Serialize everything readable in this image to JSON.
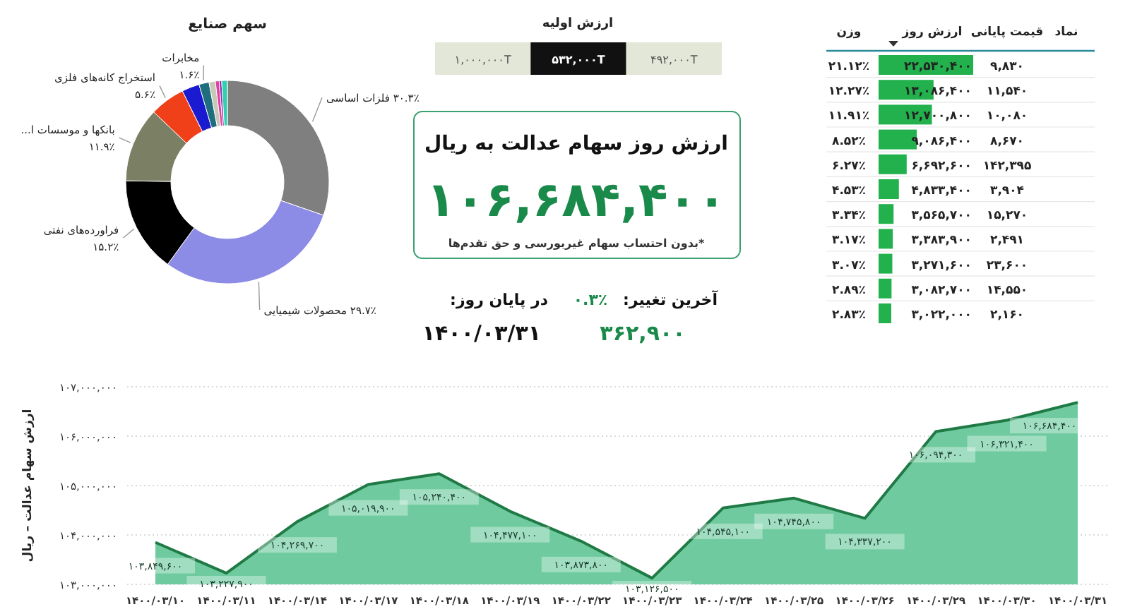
{
  "chart_data": [
    {
      "type": "donut",
      "title": "سهم صنایع",
      "categories": [
        "فلزات اساسی",
        "محصولات شیمیایی",
        "فراورده‌های نفتی",
        "بانکها و موسسات ا...",
        "استخراج کانه‌های فلزی",
        null,
        "مخابرات",
        null,
        null,
        null,
        null
      ],
      "values": [
        30.3,
        29.7,
        15.2,
        11.9,
        5.6,
        2.8,
        1.6,
        1.0,
        0.6,
        0.4,
        0.9
      ],
      "value_labels": [
        "۳۰.۳٪",
        "۲۹.۷٪",
        "۱۵.۲٪",
        "۱۱.۹٪",
        "۵.۶٪",
        null,
        "۱.۶٪",
        null,
        null,
        null,
        null
      ],
      "colors": [
        "#7f7f7f",
        "#8c8ce6",
        "#000000",
        "#7b7f63",
        "#f0401a",
        "#1a1ad0",
        "#1f6e7e",
        "#c8c8b8",
        "#e040a0",
        "#9030b0",
        "#30d0b0"
      ]
    },
    {
      "type": "other",
      "title": "ارزش اولیه",
      "annotations": [
        "۱,۰۰۰,۰۰۰T",
        "۵۳۲,۰۰۰T",
        "۴۹۲,۰۰۰T"
      ]
    },
    {
      "type": "other",
      "title": "ارزش روز سهام عدالت به ریال",
      "annotations": [
        "۱۰۶,۶۸۴,۴۰۰",
        "*بدون احتساب سهام غیربورسی و حق تقدم‌ها",
        "آخرین تغییر:",
        "۰.۳٪",
        "۳۶۲,۹۰۰",
        "در پایان روز:",
        "۱۴۰۰/۰۳/۳۱"
      ]
    },
    {
      "type": "bar",
      "orientation": "horizontal",
      "categories": [
        null,
        null,
        null,
        null,
        null,
        null,
        null,
        null,
        null,
        null,
        null
      ],
      "values": [
        22530400,
        13086400,
        12700800,
        9086400,
        6692600,
        4833400,
        3565700,
        3383900,
        3271600,
        3082700,
        3022000
      ],
      "value_labels": [
        "۲۲,۵۳۰,۴۰۰",
        "۱۳,۰۸۶,۴۰۰",
        "۱۲,۷۰۰,۸۰۰",
        "۹,۰۸۶,۴۰۰",
        "۶,۶۹۲,۶۰۰",
        "۴,۸۳۳,۴۰۰",
        "۳,۵۶۵,۷۰۰",
        "۳,۳۸۳,۹۰۰",
        "۳,۲۷۱,۶۰۰",
        "۳,۰۸۲,۷۰۰",
        "۳,۰۲۲,۰۰۰"
      ],
      "color": "#22b14c",
      "annotations": [
        "نماد",
        "قیمت پایانی",
        "ارزش روز",
        "وزن",
        "۹,۸۳۰",
        "۱۱,۵۴۰",
        "۱۰,۰۸۰",
        "۸,۶۷۰",
        "۱۴۲,۳۹۵",
        "۳,۹۰۴",
        "۱۵,۲۷۰",
        "۲,۴۹۱",
        "۲۳,۶۰۰",
        "۱۴,۵۵۰",
        "۲,۱۶۰",
        "۲۱.۱۲٪",
        "۱۲.۲۷٪",
        "۱۱.۹۱٪",
        "۸.۵۲٪",
        "۶.۲۷٪",
        "۴.۵۳٪",
        "۳.۳۴٪",
        "۳.۱۷٪",
        "۳.۰۷٪",
        "۲.۸۹٪",
        "۲.۸۳٪"
      ]
    },
    {
      "type": "area",
      "ylabel": "ارزش سهام عدالت – ریال",
      "categories": [
        "۱۴۰۰/۰۳/۱۰",
        "۱۴۰۰/۰۳/۱۱",
        "۱۴۰۰/۰۳/۱۴",
        "۱۴۰۰/۰۳/۱۷",
        "۱۴۰۰/۰۳/۱۸",
        "۱۴۰۰/۰۳/۱۹",
        "۱۴۰۰/۰۳/۲۲",
        "۱۴۰۰/۰۳/۲۳",
        "۱۴۰۰/۰۳/۲۴",
        "۱۴۰۰/۰۳/۲۵",
        "۱۴۰۰/۰۳/۲۶",
        "۱۴۰۰/۰۳/۲۹",
        "۱۴۰۰/۰۳/۳۰",
        "۱۴۰۰/۰۳/۳۱"
      ],
      "values": [
        103849600,
        103227900,
        104269700,
        105019900,
        105240400,
        104477100,
        103873800,
        103126500,
        104545100,
        104745800,
        104337200,
        106094300,
        106321400,
        106684400
      ],
      "value_labels": [
        "۱۰۳,۸۴۹,۶۰۰",
        "۱۰۳,۲۲۷,۹۰۰",
        "۱۰۴,۲۶۹,۷۰۰",
        "۱۰۵,۰۱۹,۹۰۰",
        "۱۰۵,۲۴۰,۴۰۰",
        "۱۰۴,۴۷۷,۱۰۰",
        "۱۰۳,۸۷۳,۸۰۰",
        "۱۰۳,۱۲۶,۵۰۰",
        "۱۰۴,۵۴۵,۱۰۰",
        "۱۰۴,۷۴۵,۸۰۰",
        "۱۰۴,۳۳۷,۲۰۰",
        "۱۰۶,۰۹۴,۳۰۰",
        "۱۰۶,۳۲۱,۴۰۰",
        "۱۰۶,۶۸۴,۴۰۰"
      ],
      "color": "#6fcb9f",
      "ylim": [
        103000000,
        107000000
      ],
      "yticks": [
        {
          "value": 103000000,
          "label": "۱۰۳,۰۰۰,۰۰۰"
        },
        {
          "value": 104000000,
          "label": "۱۰۴,۰۰۰,۰۰۰"
        },
        {
          "value": 105000000,
          "label": "۱۰۵,۰۰۰,۰۰۰"
        },
        {
          "value": 106000000,
          "label": "۱۰۶,۰۰۰,۰۰۰"
        },
        {
          "value": 107000000,
          "label": "۱۰۷,۰۰۰,۰۰۰"
        }
      ],
      "grid": "y"
    }
  ]
}
